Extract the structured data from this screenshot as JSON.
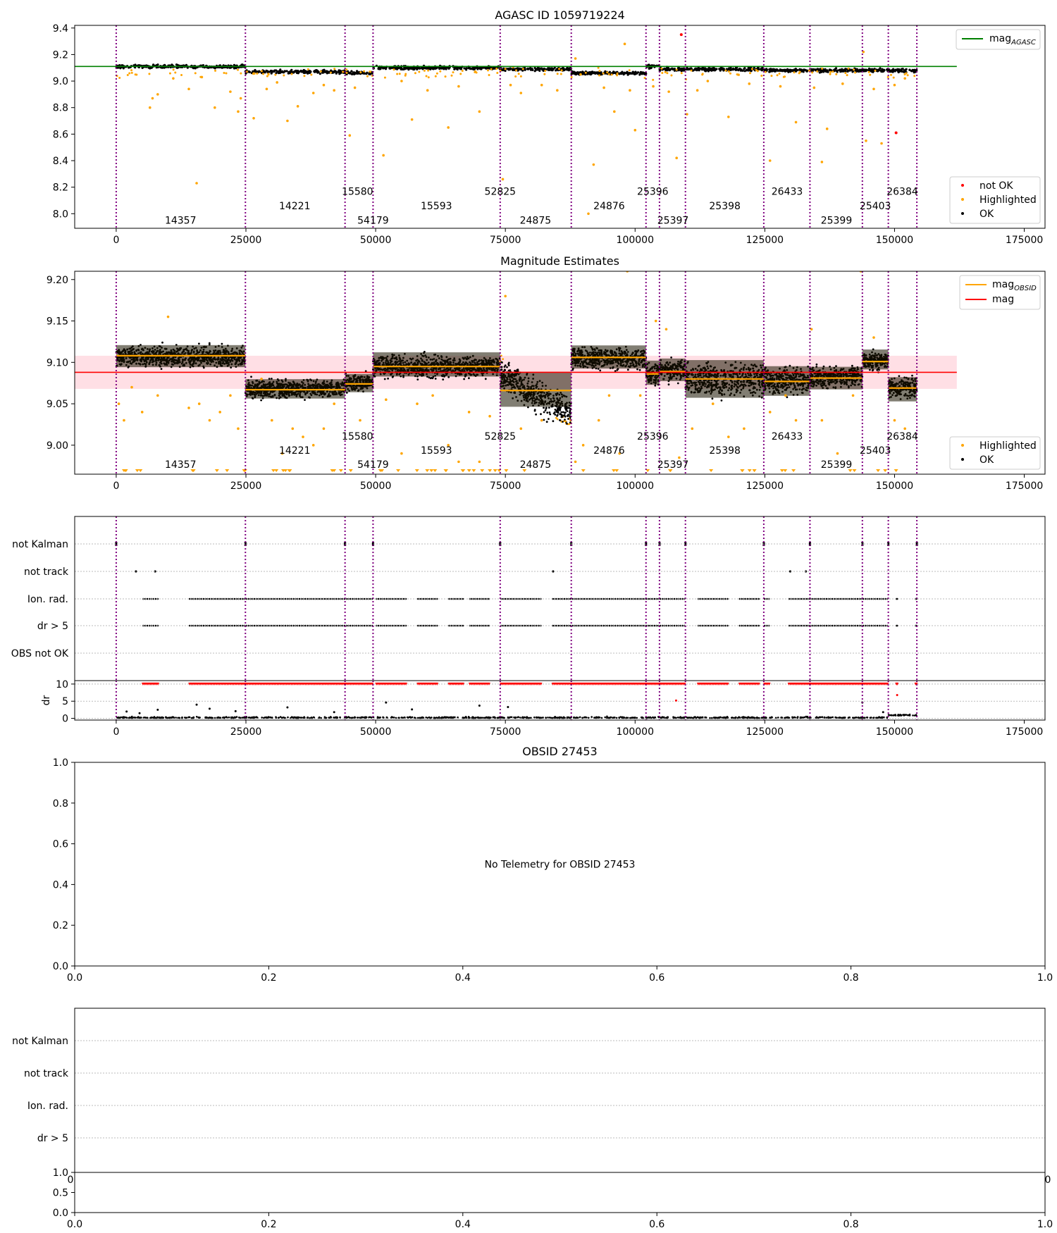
{
  "colors": {
    "ok": "#000000",
    "highlighted": "#ffa500",
    "not_ok": "#ff0000",
    "mag_agasc_line": "#008000",
    "mag_obsid_line": "#ffa500",
    "mag_line": "#ff0000",
    "mag_band": "#ffc0cb",
    "obsid_boundary": "#800080",
    "flag_gridline": "#bbbbbb"
  },
  "chart_data": [
    {
      "id": "agasc",
      "type": "scatter",
      "title": "AGASC ID 1059719224",
      "xlim": [
        -8000,
        179000
      ],
      "ylim": [
        7.89,
        9.42
      ],
      "xticks": [
        0,
        25000,
        50000,
        75000,
        100000,
        125000,
        150000,
        175000
      ],
      "xtick_labels": [
        "0",
        "25000",
        "50000",
        "75000",
        "100000",
        "125000",
        "150000",
        "175000"
      ],
      "yticks": [
        8.0,
        8.2,
        8.4,
        8.6,
        8.8,
        9.0,
        9.2,
        9.4
      ],
      "ytick_labels": [
        "8.0",
        "8.2",
        "8.4",
        "8.6",
        "8.8",
        "9.0",
        "9.2",
        "9.4"
      ],
      "obsid_boundaries": [
        0,
        24900,
        44100,
        49500,
        74000,
        87700,
        102100,
        104700,
        109700,
        124800,
        133700,
        143800,
        148800,
        154300
      ],
      "obsid_labels": [
        {
          "x": 12400,
          "y": 7.95,
          "text": "14357"
        },
        {
          "x": 34400,
          "y": 8.06,
          "text": "14221"
        },
        {
          "x": 46500,
          "y": 8.17,
          "text": "15580"
        },
        {
          "x": 49500,
          "y": 7.95,
          "text": "54179"
        },
        {
          "x": 61700,
          "y": 8.06,
          "text": "15593"
        },
        {
          "x": 74000,
          "y": 8.17,
          "text": "52825"
        },
        {
          "x": 80800,
          "y": 7.95,
          "text": "24875"
        },
        {
          "x": 95000,
          "y": 8.06,
          "text": "24876"
        },
        {
          "x": 103400,
          "y": 8.17,
          "text": "25396"
        },
        {
          "x": 107300,
          "y": 7.95,
          "text": "25397"
        },
        {
          "x": 117300,
          "y": 8.06,
          "text": "25398"
        },
        {
          "x": 129300,
          "y": 8.17,
          "text": "26433"
        },
        {
          "x": 138800,
          "y": 7.95,
          "text": "25399"
        },
        {
          "x": 146300,
          "y": 8.06,
          "text": "25403"
        },
        {
          "x": 151500,
          "y": 8.17,
          "text": "26384"
        }
      ],
      "band_levels": [
        9.11,
        9.07,
        9.06,
        9.1,
        9.09,
        9.06,
        9.11,
        9.09,
        9.09,
        9.08,
        9.08,
        9.08,
        9.08,
        9.1,
        9.07
      ],
      "mag_agasc": 9.11,
      "mag_agasc_xrange": [
        -8000,
        162000
      ],
      "highlighted_outliers": [
        [
          6500,
          8.8
        ],
        [
          7000,
          8.87
        ],
        [
          8000,
          8.9
        ],
        [
          11000,
          9.02
        ],
        [
          14000,
          8.94
        ],
        [
          15500,
          8.23
        ],
        [
          16500,
          9.03
        ],
        [
          19000,
          8.8
        ],
        [
          22000,
          8.92
        ],
        [
          23500,
          8.77
        ],
        [
          24000,
          8.87
        ],
        [
          26500,
          8.72
        ],
        [
          29000,
          8.94
        ],
        [
          31000,
          8.99
        ],
        [
          33000,
          8.7
        ],
        [
          35000,
          8.81
        ],
        [
          38000,
          8.91
        ],
        [
          40000,
          8.97
        ],
        [
          42000,
          8.93
        ],
        [
          45000,
          8.59
        ],
        [
          46000,
          8.95
        ],
        [
          51500,
          8.44
        ],
        [
          55000,
          9.0
        ],
        [
          57000,
          8.71
        ],
        [
          60000,
          8.93
        ],
        [
          64000,
          8.65
        ],
        [
          66000,
          8.96
        ],
        [
          70000,
          8.77
        ],
        [
          74500,
          8.26
        ],
        [
          76000,
          8.97
        ],
        [
          78000,
          8.91
        ],
        [
          82000,
          8.97
        ],
        [
          85000,
          8.93
        ],
        [
          88500,
          9.17
        ],
        [
          89500,
          9.05
        ],
        [
          91000,
          8.0
        ],
        [
          92000,
          8.37
        ],
        [
          94000,
          8.95
        ],
        [
          96000,
          8.77
        ],
        [
          98000,
          9.28
        ],
        [
          99000,
          8.93
        ],
        [
          100000,
          8.63
        ],
        [
          103500,
          8.96
        ],
        [
          106500,
          8.92
        ],
        [
          108000,
          8.42
        ],
        [
          110000,
          8.75
        ],
        [
          112000,
          8.93
        ],
        [
          114000,
          9.0
        ],
        [
          118000,
          8.73
        ],
        [
          122000,
          8.98
        ],
        [
          126000,
          8.4
        ],
        [
          128000,
          8.96
        ],
        [
          131000,
          8.69
        ],
        [
          134500,
          8.95
        ],
        [
          136000,
          8.39
        ],
        [
          137000,
          8.64
        ],
        [
          140000,
          8.98
        ],
        [
          144000,
          9.22
        ],
        [
          144500,
          8.55
        ],
        [
          146000,
          8.94
        ],
        [
          147500,
          8.53
        ],
        [
          150000,
          8.97
        ],
        [
          152000,
          9.02
        ]
      ],
      "not_ok_points": [
        [
          108900,
          9.35
        ],
        [
          150300,
          8.61
        ]
      ],
      "legend_lines": [
        {
          "text": "mag",
          "subscript": "AGASC"
        }
      ],
      "legend_points": [
        "not OK",
        "Highlighted",
        "OK"
      ]
    },
    {
      "id": "mag-estimates",
      "type": "scatter",
      "title": "Magnitude Estimates",
      "xlim": [
        -8000,
        179000
      ],
      "ylim": [
        8.965,
        9.21
      ],
      "xticks": [
        0,
        25000,
        50000,
        75000,
        100000,
        125000,
        150000,
        175000
      ],
      "xtick_labels": [
        "0",
        "25000",
        "50000",
        "75000",
        "100000",
        "125000",
        "150000",
        "175000"
      ],
      "yticks": [
        9.0,
        9.05,
        9.1,
        9.15,
        9.2
      ],
      "ytick_labels": [
        "9.00",
        "9.05",
        "9.10",
        "9.15",
        "9.20"
      ],
      "mag": 9.088,
      "mag_band": [
        9.068,
        9.108
      ],
      "mag_xrange": [
        -8000,
        162000
      ],
      "segments": [
        {
          "x0": 0,
          "x1": 24900,
          "center": 9.107,
          "lo": 9.087,
          "hi": 9.128,
          "mag_obsid": 9.108
        },
        {
          "x0": 24900,
          "x1": 44100,
          "center": 9.068,
          "lo": 9.05,
          "hi": 9.086,
          "mag_obsid": 9.067
        },
        {
          "x0": 44100,
          "x1": 49500,
          "center": 9.075,
          "lo": 9.058,
          "hi": 9.092,
          "mag_obsid": 9.074
        },
        {
          "x0": 49500,
          "x1": 74000,
          "center": 9.095,
          "lo": 9.075,
          "hi": 9.12,
          "mag_obsid": 9.095
        },
        {
          "x0": 74000,
          "x1": 87700,
          "center": 9.066,
          "lo": 9.035,
          "hi": 9.1,
          "mag_obsid": 9.066
        },
        {
          "x0": 87700,
          "x1": 102100,
          "center": 9.105,
          "lo": 9.085,
          "hi": 9.128,
          "mag_obsid": 9.106
        },
        {
          "x0": 102100,
          "x1": 104700,
          "center": 9.087,
          "lo": 9.065,
          "hi": 9.11,
          "mag_obsid": 9.086
        },
        {
          "x0": 104700,
          "x1": 109700,
          "center": 9.09,
          "lo": 9.07,
          "hi": 9.112,
          "mag_obsid": 9.089
        },
        {
          "x0": 109700,
          "x1": 124800,
          "center": 9.08,
          "lo": 9.045,
          "hi": 9.115,
          "mag_obsid": 9.08
        },
        {
          "x0": 124800,
          "x1": 133700,
          "center": 9.078,
          "lo": 9.05,
          "hi": 9.105,
          "mag_obsid": 9.077
        },
        {
          "x0": 133700,
          "x1": 143800,
          "center": 9.082,
          "lo": 9.06,
          "hi": 9.102,
          "mag_obsid": 9.081
        },
        {
          "x0": 143800,
          "x1": 148800,
          "center": 9.102,
          "lo": 9.085,
          "hi": 9.122,
          "mag_obsid": 9.101
        },
        {
          "x0": 148800,
          "x1": 154300,
          "center": 9.07,
          "lo": 9.045,
          "hi": 9.09,
          "mag_obsid": 9.069
        }
      ],
      "obsid_boundaries": [
        0,
        24900,
        44100,
        49500,
        74000,
        87700,
        102100,
        104700,
        109700,
        124800,
        133700,
        143800,
        148800,
        154300
      ],
      "obsid_labels": [
        {
          "x": 12400,
          "y": 8.977,
          "text": "14357"
        },
        {
          "x": 34400,
          "y": 8.994,
          "text": "14221"
        },
        {
          "x": 46500,
          "y": 9.011,
          "text": "15580"
        },
        {
          "x": 49500,
          "y": 8.977,
          "text": "54179"
        },
        {
          "x": 61700,
          "y": 8.994,
          "text": "15593"
        },
        {
          "x": 74000,
          "y": 9.011,
          "text": "52825"
        },
        {
          "x": 80800,
          "y": 8.977,
          "text": "24875"
        },
        {
          "x": 95000,
          "y": 8.994,
          "text": "24876"
        },
        {
          "x": 103400,
          "y": 9.011,
          "text": "25396"
        },
        {
          "x": 107300,
          "y": 8.977,
          "text": "25397"
        },
        {
          "x": 117300,
          "y": 8.994,
          "text": "25398"
        },
        {
          "x": 129300,
          "y": 9.011,
          "text": "26433"
        },
        {
          "x": 138800,
          "y": 8.977,
          "text": "25399"
        },
        {
          "x": 146300,
          "y": 8.994,
          "text": "25403"
        },
        {
          "x": 151500,
          "y": 9.011,
          "text": "26384"
        }
      ],
      "highlighted_outliers": [
        [
          500,
          9.05
        ],
        [
          1500,
          9.03
        ],
        [
          3000,
          9.07
        ],
        [
          5000,
          9.04
        ],
        [
          8000,
          9.06
        ],
        [
          10000,
          9.155
        ],
        [
          14000,
          9.045
        ],
        [
          16000,
          9.05
        ],
        [
          18000,
          9.03
        ],
        [
          20000,
          9.04
        ],
        [
          22000,
          9.06
        ],
        [
          23500,
          9.02
        ],
        [
          28000,
          9.08
        ],
        [
          30000,
          9.03
        ],
        [
          32000,
          8.99
        ],
        [
          34000,
          9.02
        ],
        [
          36000,
          9.01
        ],
        [
          38000,
          9.0
        ],
        [
          40000,
          9.02
        ],
        [
          42000,
          9.05
        ],
        [
          47000,
          9.03
        ],
        [
          52000,
          9.055
        ],
        [
          55000,
          8.99
        ],
        [
          58000,
          9.05
        ],
        [
          61000,
          9.06
        ],
        [
          64000,
          9.0
        ],
        [
          66000,
          8.98
        ],
        [
          68000,
          9.04
        ],
        [
          70000,
          8.98
        ],
        [
          72000,
          9.035
        ],
        [
          75000,
          9.18
        ],
        [
          78000,
          9.02
        ],
        [
          82000,
          9.03
        ],
        [
          88500,
          8.98
        ],
        [
          90000,
          9.0
        ],
        [
          93000,
          9.03
        ],
        [
          95000,
          9.06
        ],
        [
          97000,
          8.99
        ],
        [
          98500,
          9.21
        ],
        [
          101000,
          9.06
        ],
        [
          104000,
          9.15
        ],
        [
          106000,
          9.14
        ],
        [
          108500,
          8.985
        ],
        [
          111000,
          9.02
        ],
        [
          115000,
          9.05
        ],
        [
          118000,
          9.01
        ],
        [
          121000,
          9.02
        ],
        [
          126000,
          9.04
        ],
        [
          129000,
          9.06
        ],
        [
          131000,
          9.03
        ],
        [
          134000,
          9.14
        ],
        [
          136000,
          9.03
        ],
        [
          139000,
          8.99
        ],
        [
          142000,
          9.06
        ],
        [
          143500,
          9.21
        ],
        [
          146000,
          9.13
        ],
        [
          150000,
          9.03
        ],
        [
          152000,
          9.02
        ]
      ],
      "legend_lines": [
        {
          "text": "mag",
          "subscript": "OBSID"
        },
        {
          "text": "mag",
          "subscript": ""
        }
      ],
      "legend_points": [
        "Highlighted",
        "OK"
      ]
    },
    {
      "id": "flags",
      "type": "scatter",
      "flag_labels": [
        "not Kalman",
        "not track",
        "Ion. rad.",
        "dr > 5",
        "OBS not OK"
      ],
      "xlim": [
        -8000,
        179000
      ],
      "xticks": [
        0,
        25000,
        50000,
        75000,
        100000,
        125000,
        150000,
        175000
      ],
      "xtick_labels": [
        "0",
        "25000",
        "50000",
        "75000",
        "100000",
        "125000",
        "150000",
        "175000"
      ],
      "dr_ylabel": "dr",
      "dr_ylim": [
        -0.5,
        11
      ],
      "dr_yticks": [
        0,
        5,
        10
      ],
      "dr_ytick_labels": [
        "0",
        "5",
        "10"
      ],
      "not_track_points": [
        3800,
        7500,
        84200,
        129900,
        132900
      ],
      "flag_clusters": [
        [
          5000,
          8200
        ],
        [
          14000,
          24900
        ],
        [
          24900,
          49500
        ],
        [
          50000,
          56000
        ],
        [
          58000,
          62000
        ],
        [
          64000,
          67000
        ],
        [
          68000,
          72000
        ],
        [
          74000,
          82000
        ],
        [
          84000,
          87700
        ],
        [
          87700,
          102100
        ],
        [
          102100,
          104700
        ],
        [
          104700,
          109700
        ],
        [
          112000,
          118000
        ],
        [
          120000,
          124000
        ],
        [
          124800,
          126000
        ],
        [
          129500,
          133700
        ],
        [
          133700,
          143800
        ],
        [
          143800,
          148800
        ],
        [
          150300,
          150600
        ],
        [
          154000,
          154300
        ]
      ],
      "dr_spikes": [
        [
          2000,
          2.0
        ],
        [
          4500,
          1.5
        ],
        [
          8000,
          2.5
        ],
        [
          15500,
          4.0
        ],
        [
          18000,
          2.8
        ],
        [
          23000,
          2.1
        ],
        [
          33000,
          3.2
        ],
        [
          42000,
          1.8
        ],
        [
          52000,
          4.6
        ],
        [
          57000,
          2.6
        ],
        [
          70000,
          3.7
        ],
        [
          75500,
          3.3
        ],
        [
          107900,
          5.2
        ],
        [
          143800,
          4.6
        ],
        [
          147800,
          1.8
        ],
        [
          150500,
          6.8
        ]
      ]
    },
    {
      "id": "obsid-27453",
      "type": "scatter",
      "title": "OBSID 27453",
      "message": "No Telemetry for OBSID 27453",
      "xlim": [
        0.0,
        1.0
      ],
      "ylim": [
        0.0,
        1.0
      ],
      "xticks": [
        0.0,
        0.2,
        0.4,
        0.6,
        0.8,
        1.0
      ],
      "xtick_labels": [
        "0.0",
        "0.2",
        "0.4",
        "0.6",
        "0.8",
        "1.0"
      ],
      "yticks": [
        0.0,
        0.2,
        0.4,
        0.6,
        0.8,
        1.0
      ],
      "ytick_labels": [
        "0.0",
        "0.2",
        "0.4",
        "0.6",
        "0.8",
        "1.0"
      ]
    },
    {
      "id": "flags-obsid-27453",
      "type": "scatter",
      "flag_labels": [
        "not Kalman",
        "not track",
        "Ion. rad.",
        "dr > 5"
      ],
      "xlim": [
        0.0,
        1.0
      ],
      "xticks": [
        0.0,
        0.2,
        0.4,
        0.6,
        0.8,
        1.0
      ],
      "xtick_labels": [
        "0.0",
        "0.2",
        "0.4",
        "0.6",
        "0.8",
        "1.0"
      ],
      "dr_ylim": [
        0.0,
        1.0
      ],
      "dr_yticks": [
        0.0,
        0.5,
        1.0
      ],
      "dr_ytick_labels": [
        "0.0",
        "0.5",
        "1.0"
      ],
      "clipped_tick_labels": [
        "0",
        "0"
      ]
    }
  ]
}
